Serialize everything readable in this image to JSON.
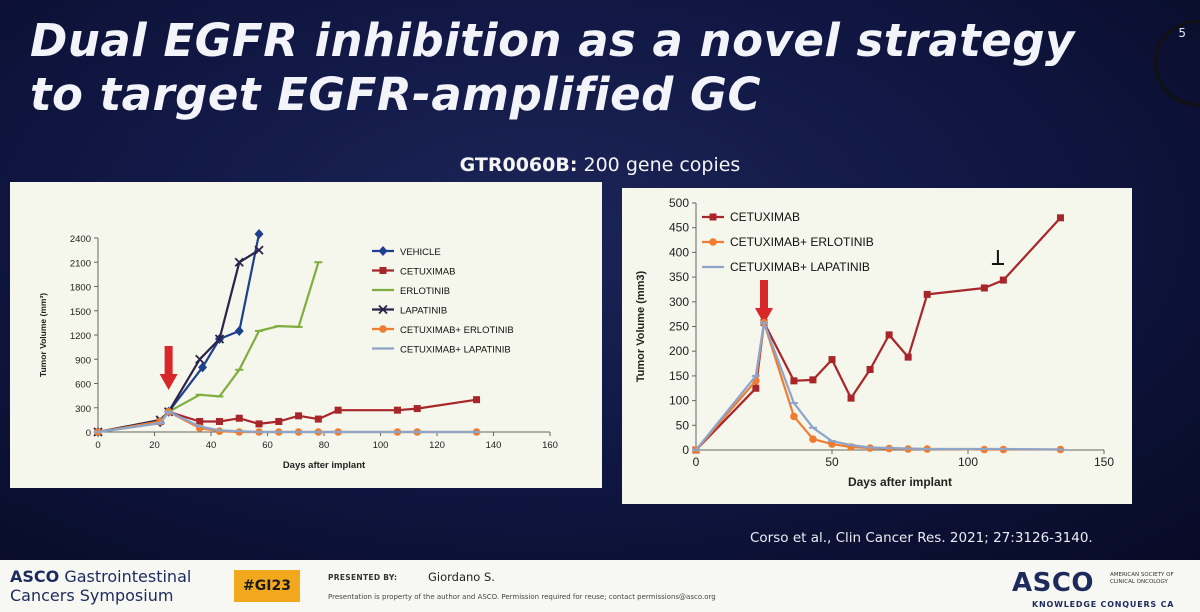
{
  "slide": {
    "title": "Dual EGFR inhibition as a novel strategy to target EGFR-amplified GC",
    "slide_number": "5",
    "subtitle_bold": "GTR0060B:",
    "subtitle_rest": " 200 gene copies",
    "citation": "Corso et al., Clin Cancer Res. 2021; 27:3126-3140."
  },
  "footer": {
    "asco_word": "ASCO",
    "symposium_line1": "Gastrointestinal",
    "symposium_line2": "Cancers Symposium",
    "hashtag": "#GI23",
    "presented_by_label": "PRESENTED BY:",
    "presenter": "Giordano S.",
    "disclaimer": "Presentation is property of the author and ASCO. Permission required for reuse; contact permissions@asco.org",
    "asco_logo": "ASCO",
    "asco_logo_subtitle": "AMERICAN SOCIETY OF CLINICAL ONCOLOGY",
    "asco_tagline": "KNOWLEDGE CONQUERS CA"
  },
  "colors": {
    "vehicle": "#1f3f8f",
    "cetuximab": "#a8262a",
    "erlotinib": "#7fae3e",
    "lapatinib": "#2b2348",
    "cetux_erlotinib": "#ee7d31",
    "cetux_lapatinib": "#8ea4c9",
    "arrow": "#d8262a"
  },
  "chart_data": [
    {
      "type": "line",
      "ylabel": "Tumor Volume (mm³)",
      "xlabel": "Days after implant",
      "xlim": [
        0,
        160
      ],
      "ylim": [
        0,
        2400
      ],
      "xticks": [
        0,
        20,
        40,
        60,
        80,
        100,
        120,
        140,
        160
      ],
      "yticks": [
        0,
        300,
        600,
        900,
        1200,
        1500,
        1800,
        2100,
        2400
      ],
      "legend_position": "right",
      "treatment_arrow_x": 25,
      "series": [
        {
          "name": "VEHICLE",
          "color_key": "vehicle",
          "marker": "diamond",
          "x": [
            0,
            22,
            25,
            37,
            43,
            50,
            57
          ],
          "y": [
            0,
            120,
            250,
            800,
            1150,
            1250,
            2450
          ]
        },
        {
          "name": "CETUXIMAB",
          "color_key": "cetuximab",
          "marker": "square",
          "x": [
            0,
            22,
            25,
            36,
            43,
            50,
            57,
            64,
            71,
            78,
            85,
            106,
            113,
            134
          ],
          "y": [
            0,
            130,
            250,
            130,
            130,
            170,
            100,
            130,
            200,
            160,
            270,
            270,
            290,
            400
          ]
        },
        {
          "name": "ERLOTINIB",
          "color_key": "erlotinib",
          "marker": "bar",
          "x": [
            0,
            22,
            25,
            36,
            43,
            50,
            57,
            64,
            71,
            78
          ],
          "y": [
            0,
            110,
            250,
            460,
            440,
            770,
            1250,
            1310,
            1300,
            2100
          ]
        },
        {
          "name": "LAPATINIB",
          "color_key": "lapatinib",
          "marker": "x",
          "x": [
            0,
            22,
            25,
            36,
            43,
            50,
            57
          ],
          "y": [
            0,
            150,
            250,
            900,
            1150,
            2100,
            2250
          ]
        },
        {
          "name": "CETUXIMAB+ ERLOTINIB",
          "color_key": "cetux_erlotinib",
          "marker": "circle",
          "x": [
            0,
            22,
            25,
            36,
            43,
            50,
            57,
            64,
            71,
            78,
            85,
            106,
            113,
            134
          ],
          "y": [
            0,
            130,
            250,
            50,
            10,
            0,
            0,
            0,
            0,
            0,
            0,
            0,
            0,
            0
          ]
        },
        {
          "name": "CETUXIMAB+ LAPATINIB",
          "color_key": "cetux_lapatinib",
          "marker": "bar",
          "x": [
            0,
            22,
            25,
            36,
            43,
            50,
            57,
            64,
            71,
            78,
            85,
            106,
            113,
            134
          ],
          "y": [
            0,
            110,
            250,
            70,
            20,
            10,
            0,
            0,
            0,
            0,
            0,
            0,
            0,
            0
          ]
        }
      ]
    },
    {
      "type": "line",
      "ylabel": "Tumor Volume (mm3)",
      "xlabel": "Days after  implant",
      "xlim": [
        0,
        150
      ],
      "ylim": [
        0,
        500
      ],
      "xticks": [
        0,
        50,
        100,
        150
      ],
      "yticks": [
        0,
        50,
        100,
        150,
        200,
        250,
        300,
        350,
        400,
        450,
        500
      ],
      "legend_position": "top-left",
      "treatment_arrow_x": 25,
      "stop_marker_x": 111,
      "series": [
        {
          "name": "CETUXIMAB",
          "color_key": "cetuximab",
          "marker": "square",
          "x": [
            0,
            22,
            25,
            36,
            43,
            50,
            57,
            64,
            71,
            78,
            85,
            106,
            113,
            134
          ],
          "y": [
            0,
            125,
            258,
            140,
            142,
            183,
            105,
            163,
            233,
            188,
            315,
            328,
            344,
            470
          ]
        },
        {
          "name": "CETUXIMAB+ ERLOTINIB",
          "color_key": "cetux_erlotinib",
          "marker": "circle",
          "x": [
            0,
            22,
            25,
            36,
            43,
            50,
            57,
            64,
            71,
            78,
            85,
            106,
            113,
            134
          ],
          "y": [
            0,
            140,
            258,
            68,
            22,
            12,
            6,
            4,
            3,
            2,
            2,
            1,
            1,
            1
          ]
        },
        {
          "name": "CETUXIMAB+ LAPATINIB",
          "color_key": "cetux_lapatinib",
          "marker": "bar",
          "x": [
            0,
            22,
            25,
            36,
            43,
            50,
            57,
            64,
            71,
            78,
            85,
            106,
            113,
            134
          ],
          "y": [
            0,
            150,
            258,
            95,
            45,
            18,
            10,
            5,
            4,
            3,
            2,
            2,
            2,
            1
          ]
        }
      ]
    }
  ]
}
